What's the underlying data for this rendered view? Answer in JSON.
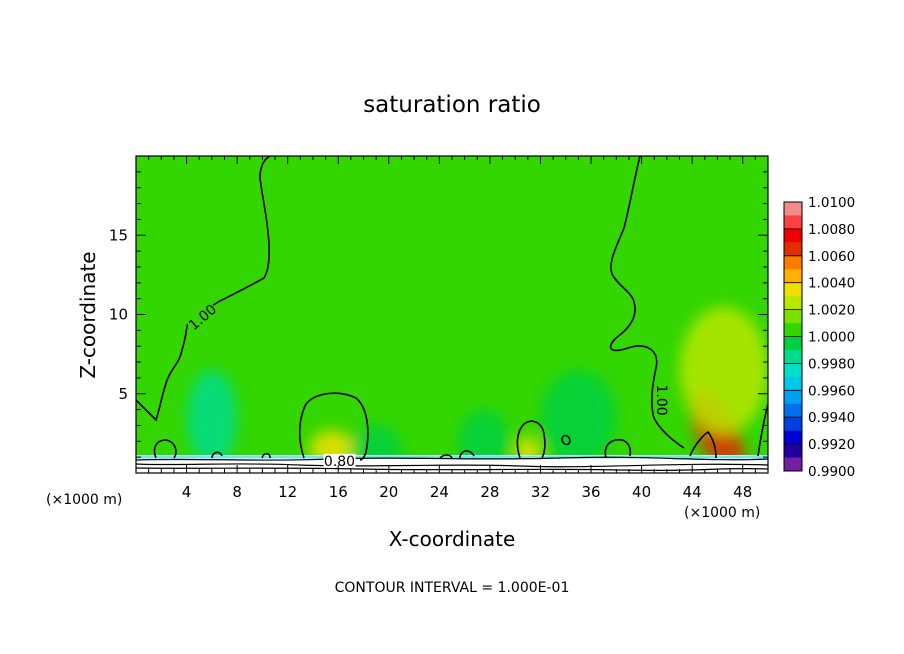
{
  "chart_data": {
    "type": "heatmap",
    "title": "saturation ratio",
    "xlabel": "X-coordinate",
    "ylabel": "Z-coordinate",
    "x_unit_left": "(×1000 m)",
    "x_unit_right": "(×1000 m)",
    "xlim": [
      0,
      50
    ],
    "ylim": [
      0,
      20
    ],
    "x_ticks": [
      "4",
      "8",
      "12",
      "16",
      "20",
      "24",
      "28",
      "32",
      "36",
      "40",
      "44",
      "48"
    ],
    "x_tick_values": [
      4,
      8,
      12,
      16,
      20,
      24,
      28,
      32,
      36,
      40,
      44,
      48
    ],
    "y_ticks": [
      "5",
      "10",
      "15"
    ],
    "y_tick_values": [
      5,
      10,
      15
    ],
    "contour_labels": [
      {
        "text": "1.00",
        "x": 5.5,
        "z": 9.6
      },
      {
        "text": "1.00",
        "x": 41.2,
        "z": 4.6
      },
      {
        "text": "0.80",
        "x": 16.1,
        "z": 0.45
      }
    ],
    "contour_interval_text": "CONTOUR INTERVAL = 1.000E-01",
    "background_value": 1.0005,
    "features": [
      {
        "x": 46.0,
        "z": 2.5,
        "rx": 1.6,
        "rz": 3.0,
        "value": 1.006
      },
      {
        "x": 46.5,
        "z": 6.5,
        "rx": 3.5,
        "rz": 4.0,
        "value": 1.0025
      },
      {
        "x": 15.5,
        "z": 1.5,
        "rx": 1.8,
        "rz": 1.2,
        "value": 1.0035
      },
      {
        "x": 31.0,
        "z": 1.3,
        "rx": 1.0,
        "rz": 1.0,
        "value": 1.0035
      },
      {
        "x": 6.0,
        "z": 3.5,
        "rx": 2.0,
        "rz": 3.0,
        "value": 0.9988
      },
      {
        "x": 35.0,
        "z": 3.5,
        "rx": 3.0,
        "rz": 3.0,
        "value": 0.999
      },
      {
        "x": 19.0,
        "z": 1.5,
        "rx": 2.0,
        "rz": 1.5,
        "value": 0.9992
      },
      {
        "x": 27.5,
        "z": 2.0,
        "rx": 2.0,
        "rz": 2.0,
        "value": 0.9993
      }
    ],
    "colorbar": {
      "labels": [
        "1.0100",
        "1.0080",
        "1.0060",
        "1.0040",
        "1.0020",
        "1.0000",
        "0.9980",
        "0.9960",
        "0.9940",
        "0.9920",
        "0.9900"
      ],
      "levels": [
        {
          "from": 1.009,
          "to": 1.01,
          "color": "#f28b8b"
        },
        {
          "from": 1.008,
          "to": 1.009,
          "color": "#ff4040"
        },
        {
          "from": 1.007,
          "to": 1.008,
          "color": "#f00000"
        },
        {
          "from": 1.006,
          "to": 1.007,
          "color": "#e03000"
        },
        {
          "from": 1.005,
          "to": 1.006,
          "color": "#ff7a00"
        },
        {
          "from": 1.004,
          "to": 1.005,
          "color": "#ffb000"
        },
        {
          "from": 1.003,
          "to": 1.004,
          "color": "#f0e000"
        },
        {
          "from": 1.002,
          "to": 1.003,
          "color": "#b8e800"
        },
        {
          "from": 1.001,
          "to": 1.002,
          "color": "#7ae000"
        },
        {
          "from": 1.0,
          "to": 1.001,
          "color": "#33d600"
        },
        {
          "from": 0.999,
          "to": 1.0,
          "color": "#00d040"
        },
        {
          "from": 0.998,
          "to": 0.999,
          "color": "#00dc8c"
        },
        {
          "from": 0.997,
          "to": 0.998,
          "color": "#00e0c8"
        },
        {
          "from": 0.996,
          "to": 0.997,
          "color": "#00c8e8"
        },
        {
          "from": 0.995,
          "to": 0.996,
          "color": "#00a0f0"
        },
        {
          "from": 0.994,
          "to": 0.995,
          "color": "#0070f0"
        },
        {
          "from": 0.993,
          "to": 0.994,
          "color": "#0040e0"
        },
        {
          "from": 0.992,
          "to": 0.993,
          "color": "#0000d0"
        },
        {
          "from": 0.991,
          "to": 0.992,
          "color": "#2000a0"
        },
        {
          "from": 0.99,
          "to": 0.991,
          "color": "#7020a0"
        }
      ]
    }
  }
}
